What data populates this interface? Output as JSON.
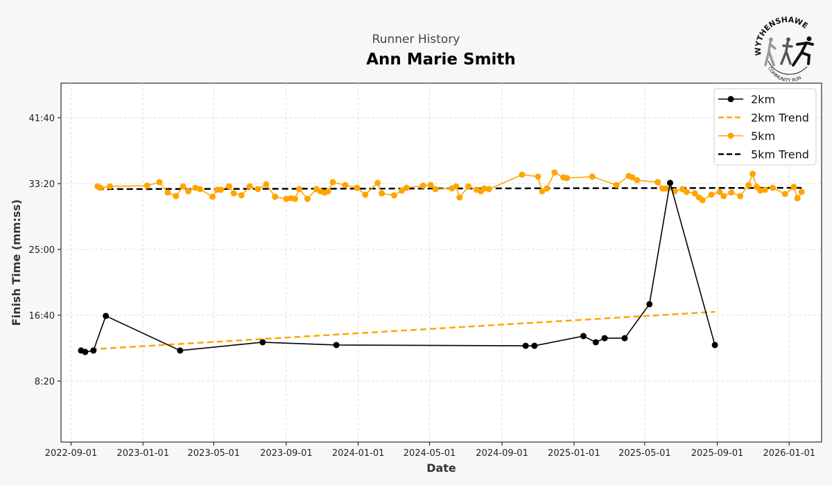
{
  "header": {
    "subtitle": "Runner History",
    "title": "Ann Marie Smith"
  },
  "logo": {
    "top_text": "WYTHENSHAWE",
    "bottom_text": "COMMUNITY RUN"
  },
  "colors": {
    "run_2km": "#000000",
    "run_5km": "#FFA500",
    "trend_2km": "#FFA500",
    "trend_5km": "#000000"
  },
  "chart_data": {
    "type": "line",
    "xlabel": "Date",
    "ylabel": "Finish Time (mm:ss)",
    "x_ticks": [
      "2022-09-01",
      "2023-01-01",
      "2023-05-01",
      "2023-09-01",
      "2024-01-01",
      "2024-05-01",
      "2024-09-01",
      "2025-01-01",
      "2025-05-01",
      "2025-09-01",
      "2026-01-01"
    ],
    "y_ticks": [
      "8:20",
      "16:40",
      "25:00",
      "33:20",
      "41:40"
    ],
    "xlim": [
      "2022-08-15",
      "2026-02-25"
    ],
    "ylim": [
      "0:37",
      "46:03"
    ],
    "grid": true,
    "legend": {
      "placement": "top-right",
      "entries": [
        "2km",
        "2km Trend",
        "5km",
        "5km Trend"
      ]
    },
    "series": [
      {
        "name": "2km",
        "style": "line-marker",
        "color": "#000000",
        "points": [
          [
            "2022-09-18",
            "12:12"
          ],
          [
            "2022-09-25",
            "12:01"
          ],
          [
            "2022-10-09",
            "12:12"
          ],
          [
            "2022-10-30",
            "16:35"
          ],
          [
            "2023-03-05",
            "12:12"
          ],
          [
            "2023-07-23",
            "13:15"
          ],
          [
            "2023-11-25",
            "12:54"
          ],
          [
            "2024-10-11",
            "12:48"
          ],
          [
            "2024-10-26",
            "12:48"
          ],
          [
            "2025-01-17",
            "14:02"
          ],
          [
            "2025-02-07",
            "13:15"
          ],
          [
            "2025-02-22",
            "13:46"
          ],
          [
            "2025-03-28",
            "13:46"
          ],
          [
            "2025-05-09",
            "18:04"
          ],
          [
            "2025-06-13",
            "33:25"
          ],
          [
            "2025-08-28",
            "12:54"
          ]
        ]
      },
      {
        "name": "2km Trend",
        "style": "dashed",
        "color": "#FFA500",
        "points": [
          [
            "2022-09-18",
            "12:17"
          ],
          [
            "2025-08-28",
            "17:06"
          ]
        ]
      },
      {
        "name": "5km",
        "style": "line-marker",
        "color": "#FFA500",
        "points": [
          [
            "2022-10-16",
            "32:59"
          ],
          [
            "2022-10-21",
            "32:48"
          ],
          [
            "2022-11-06",
            "32:59"
          ],
          [
            "2023-01-08",
            "33:04"
          ],
          [
            "2023-01-29",
            "33:31"
          ],
          [
            "2023-02-12",
            "32:12"
          ],
          [
            "2023-02-26",
            "31:45"
          ],
          [
            "2023-03-10",
            "32:59"
          ],
          [
            "2023-03-19",
            "32:22"
          ],
          [
            "2023-03-31",
            "32:48"
          ],
          [
            "2023-04-08",
            "32:38"
          ],
          [
            "2023-04-29",
            "31:40"
          ],
          [
            "2023-05-07",
            "32:33"
          ],
          [
            "2023-05-13",
            "32:33"
          ],
          [
            "2023-05-27",
            "32:59"
          ],
          [
            "2023-06-04",
            "32:06"
          ],
          [
            "2023-06-17",
            "31:51"
          ],
          [
            "2023-07-01",
            "32:59"
          ],
          [
            "2023-07-15",
            "32:38"
          ],
          [
            "2023-07-29",
            "33:15"
          ],
          [
            "2023-08-13",
            "31:40"
          ],
          [
            "2023-09-01",
            "31:24"
          ],
          [
            "2023-09-09",
            "31:29"
          ],
          [
            "2023-09-16",
            "31:24"
          ],
          [
            "2023-09-23",
            "32:38"
          ],
          [
            "2023-10-07",
            "31:24"
          ],
          [
            "2023-10-22",
            "32:38"
          ],
          [
            "2023-10-29",
            "32:22"
          ],
          [
            "2023-11-05",
            "32:12"
          ],
          [
            "2023-11-11",
            "32:22"
          ],
          [
            "2023-11-19",
            "33:31"
          ],
          [
            "2023-12-10",
            "33:09"
          ],
          [
            "2023-12-30",
            "32:48"
          ],
          [
            "2024-01-13",
            "31:56"
          ],
          [
            "2024-02-03",
            "33:25"
          ],
          [
            "2024-02-10",
            "32:06"
          ],
          [
            "2024-03-02",
            "31:51"
          ],
          [
            "2024-03-15",
            "32:27"
          ],
          [
            "2024-03-23",
            "32:48"
          ],
          [
            "2024-04-20",
            "33:04"
          ],
          [
            "2024-05-03",
            "33:09"
          ],
          [
            "2024-05-11",
            "32:38"
          ],
          [
            "2024-06-08",
            "32:43"
          ],
          [
            "2024-06-15",
            "32:59"
          ],
          [
            "2024-06-21",
            "31:35"
          ],
          [
            "2024-07-06",
            "32:59"
          ],
          [
            "2024-07-20",
            "32:33"
          ],
          [
            "2024-07-27",
            "32:22"
          ],
          [
            "2024-08-02",
            "32:43"
          ],
          [
            "2024-08-10",
            "32:38"
          ],
          [
            "2024-10-05",
            "34:28"
          ],
          [
            "2024-11-01",
            "34:13"
          ],
          [
            "2024-11-08",
            "32:22"
          ],
          [
            "2024-11-16",
            "32:43"
          ],
          [
            "2024-11-29",
            "34:44"
          ],
          [
            "2024-12-14",
            "34:07"
          ],
          [
            "2024-12-20",
            "34:02"
          ],
          [
            "2025-02-01",
            "34:13"
          ],
          [
            "2025-03-14",
            "33:09"
          ],
          [
            "2025-04-04",
            "34:18"
          ],
          [
            "2025-04-10",
            "34:07"
          ],
          [
            "2025-04-18",
            "33:46"
          ],
          [
            "2025-05-23",
            "33:31"
          ],
          [
            "2025-05-31",
            "32:43"
          ],
          [
            "2025-06-06",
            "32:43"
          ],
          [
            "2025-06-21",
            "32:22"
          ],
          [
            "2025-07-04",
            "32:38"
          ],
          [
            "2025-07-11",
            "32:17"
          ],
          [
            "2025-07-25",
            "32:06"
          ],
          [
            "2025-08-01",
            "31:35"
          ],
          [
            "2025-08-07",
            "31:14"
          ],
          [
            "2025-08-22",
            "31:56"
          ],
          [
            "2025-09-05",
            "32:17"
          ],
          [
            "2025-09-12",
            "31:45"
          ],
          [
            "2025-09-25",
            "32:12"
          ],
          [
            "2025-10-10",
            "31:45"
          ],
          [
            "2025-10-24",
            "33:09"
          ],
          [
            "2025-10-31",
            "34:34"
          ],
          [
            "2025-11-07",
            "32:54"
          ],
          [
            "2025-11-13",
            "32:27"
          ],
          [
            "2025-11-21",
            "32:33"
          ],
          [
            "2025-12-04",
            "32:48"
          ],
          [
            "2025-12-25",
            "32:01"
          ],
          [
            "2026-01-09",
            "32:54"
          ],
          [
            "2026-01-15",
            "31:29"
          ],
          [
            "2026-01-22",
            "32:17"
          ]
        ]
      },
      {
        "name": "5km Trend",
        "style": "dashed",
        "color": "#000000",
        "points": [
          [
            "2022-10-16",
            "32:38"
          ],
          [
            "2026-01-22",
            "32:48"
          ]
        ]
      }
    ]
  }
}
